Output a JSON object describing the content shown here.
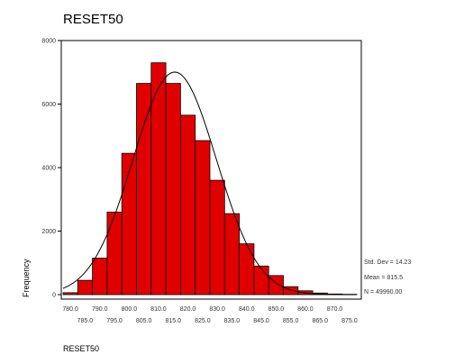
{
  "chart_data": {
    "type": "bar",
    "title": "RESET50",
    "xlabel": "RESET50",
    "ylabel": "Frequency",
    "ylim": [
      0,
      8000
    ],
    "yticks": [
      "0",
      "2000",
      "4000",
      "6000",
      "8000"
    ],
    "bin_centers": [
      780,
      785,
      790,
      795,
      800,
      805,
      810,
      815,
      820,
      825,
      830,
      835,
      840,
      845,
      850,
      855,
      860,
      865,
      870,
      875
    ],
    "xticks_upper": [
      "780.0",
      "790.0",
      "800.0",
      "810.0",
      "820.0",
      "830.0",
      "840.0",
      "850.0",
      "860.0",
      "870.0"
    ],
    "xticks_lower": [
      "785.0",
      "795.0",
      "805.0",
      "815.0",
      "825.0",
      "835.0",
      "845.0",
      "855.0",
      "865.0",
      "875.0"
    ],
    "values": [
      60,
      450,
      1150,
      2600,
      4450,
      6650,
      7300,
      6650,
      5650,
      4850,
      3600,
      2550,
      1600,
      900,
      600,
      250,
      120,
      50,
      20,
      10
    ],
    "bar_color": "#e00000",
    "normal_curve": {
      "mean": 815.5,
      "std_dev": 14.23,
      "n": 49990
    },
    "stats": {
      "std_dev": "Std. Dev = 14.23",
      "mean": "Mean = 815.5",
      "n": "N = 49990.00"
    },
    "grid": false
  }
}
